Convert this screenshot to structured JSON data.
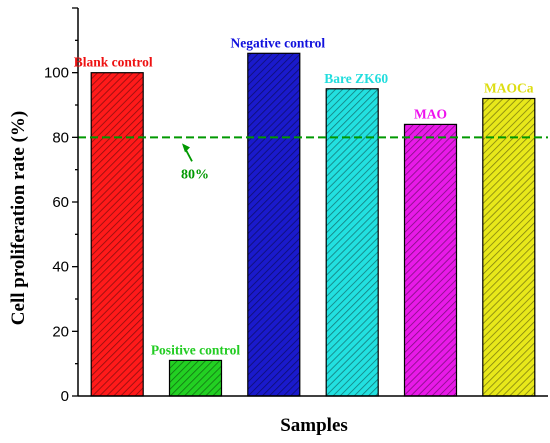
{
  "chart_data": {
    "type": "bar",
    "categories": [
      "Blank control",
      "Positive control",
      "Negative control",
      "Bare ZK60",
      "MAO",
      "MAOCa"
    ],
    "values": [
      100,
      11,
      106,
      95,
      84,
      92
    ],
    "colors": [
      "#ff1a1a",
      "#22d022",
      "#1a1acc",
      "#22e0e0",
      "#e81ae8",
      "#e8e81a"
    ],
    "label_colors": [
      "#ee1111",
      "#22cc22",
      "#1111dd",
      "#22dddd",
      "#ee11ee",
      "#dddd11"
    ],
    "ylabel": "Cell proliferation rate (%)",
    "xlabel": "Samples",
    "ylim": [
      0,
      120
    ],
    "yticks": [
      0,
      20,
      40,
      60,
      80,
      100
    ],
    "grid": false,
    "bar_hatch": "diagonal",
    "reference_line": {
      "value": 80,
      "label": "80%",
      "color": "#009900",
      "style": "dashed"
    }
  }
}
